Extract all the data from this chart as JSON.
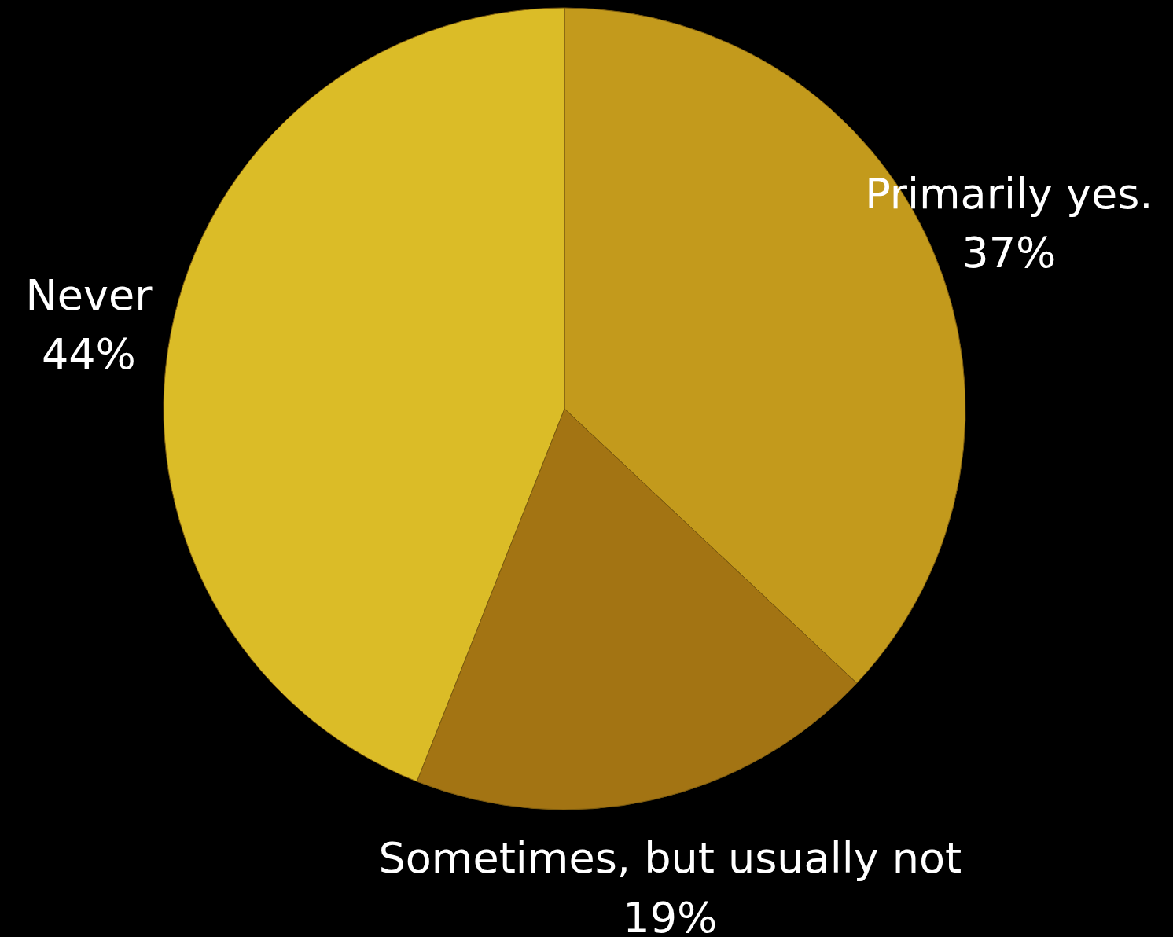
{
  "chart_data": {
    "type": "pie",
    "categories": [
      "Primarily yes.",
      "Sometimes, but usually not",
      "Never"
    ],
    "values": [
      37,
      19,
      44
    ],
    "value_labels": [
      "37%",
      "19%",
      "44%"
    ],
    "colors": [
      "#c39a1c",
      "#a37413",
      "#dbbc27"
    ]
  }
}
